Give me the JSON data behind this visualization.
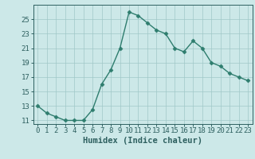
{
  "x": [
    0,
    1,
    2,
    3,
    4,
    5,
    6,
    7,
    8,
    9,
    10,
    11,
    12,
    13,
    14,
    15,
    16,
    17,
    18,
    19,
    20,
    21,
    22,
    23
  ],
  "y": [
    13,
    12,
    11.5,
    11,
    11,
    11,
    12.5,
    16,
    18,
    21,
    26,
    25.5,
    24.5,
    23.5,
    23,
    21,
    20.5,
    22,
    21,
    19,
    18.5,
    17.5,
    17,
    16.5
  ],
  "line_color": "#2e7d6e",
  "marker_color": "#2e7d6e",
  "bg_color": "#cce8e8",
  "grid_color": "#a0c8c8",
  "xlabel": "Humidex (Indice chaleur)",
  "xlim": [
    -0.5,
    23.5
  ],
  "ylim": [
    10.5,
    27
  ],
  "yticks": [
    11,
    13,
    15,
    17,
    19,
    21,
    23,
    25
  ],
  "xticks": [
    0,
    1,
    2,
    3,
    4,
    5,
    6,
    7,
    8,
    9,
    10,
    11,
    12,
    13,
    14,
    15,
    16,
    17,
    18,
    19,
    20,
    21,
    22,
    23
  ],
  "font_color": "#2e6060",
  "xlabel_fontsize": 7.5,
  "tick_fontsize": 6.5,
  "linewidth": 1.0,
  "markersize": 2.5
}
